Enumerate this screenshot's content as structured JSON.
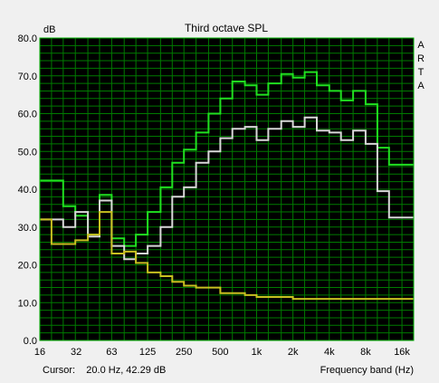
{
  "chart_data": {
    "type": "line",
    "step": true,
    "title": "Third octave SPL",
    "ylabel": "dB",
    "xlabel": "Frequency band (Hz)",
    "x_scale": "log",
    "ylim": [
      0,
      80
    ],
    "xlim": [
      16,
      20000
    ],
    "y_ticks": [
      0,
      10,
      20,
      30,
      40,
      50,
      60,
      70,
      80
    ],
    "y_tick_labels": [
      "0.0",
      "10.0",
      "20.0",
      "30.0",
      "40.0",
      "50.0",
      "60.0",
      "70.0",
      "80.0"
    ],
    "x_ticks": [
      16,
      32,
      63,
      125,
      250,
      500,
      1000,
      2000,
      4000,
      8000,
      16000
    ],
    "x_tick_labels": [
      "16",
      "32",
      "63",
      "125",
      "250",
      "500",
      "1k",
      "2k",
      "4k",
      "8k",
      "16k"
    ],
    "grid": true,
    "side_label": [
      "A",
      "R",
      "T",
      "A"
    ],
    "cursor_text": "Cursor:    20.0 Hz, 42.29 dB",
    "colors": {
      "plot_bg": "#000000",
      "grid": "#007a00",
      "frame": "#00b000",
      "page_bg": "#f0f0f0"
    },
    "bands": [
      16,
      20,
      25,
      31.5,
      40,
      50,
      63,
      80,
      100,
      125,
      160,
      200,
      250,
      315,
      400,
      500,
      630,
      800,
      1000,
      1250,
      1600,
      2000,
      2500,
      3150,
      4000,
      5000,
      6300,
      8000,
      10000,
      12500,
      16000,
      20000
    ],
    "series": [
      {
        "color": "#20e020",
        "values": [
          42.3,
          42.3,
          35.5,
          33,
          28,
          38.5,
          27,
          25,
          28,
          34,
          40.5,
          47,
          50.5,
          55,
          60,
          64,
          68.5,
          67.5,
          65,
          68,
          70.5,
          69.5,
          71,
          67.5,
          66,
          63.5,
          66,
          62.5,
          51,
          46.5,
          46.5
        ]
      },
      {
        "color": "#d8d8d8",
        "values": [
          32,
          32,
          30,
          34,
          27.5,
          37,
          25,
          21.5,
          23,
          25,
          30,
          38,
          40.5,
          47,
          50,
          53.5,
          56,
          56.5,
          53,
          56,
          58,
          56.5,
          59,
          55.5,
          55,
          53,
          55.5,
          52,
          39.5,
          32.5,
          32.5
        ]
      },
      {
        "color": "#c8c020",
        "values": [
          32,
          25.5,
          25.5,
          26.5,
          28,
          34,
          23,
          23.5,
          20.5,
          18,
          17,
          15.5,
          14.5,
          14,
          14,
          12.5,
          12.5,
          12,
          11.5,
          11.5,
          11.5,
          11,
          11,
          11,
          11,
          11,
          11,
          11,
          11,
          11,
          11
        ]
      }
    ]
  }
}
